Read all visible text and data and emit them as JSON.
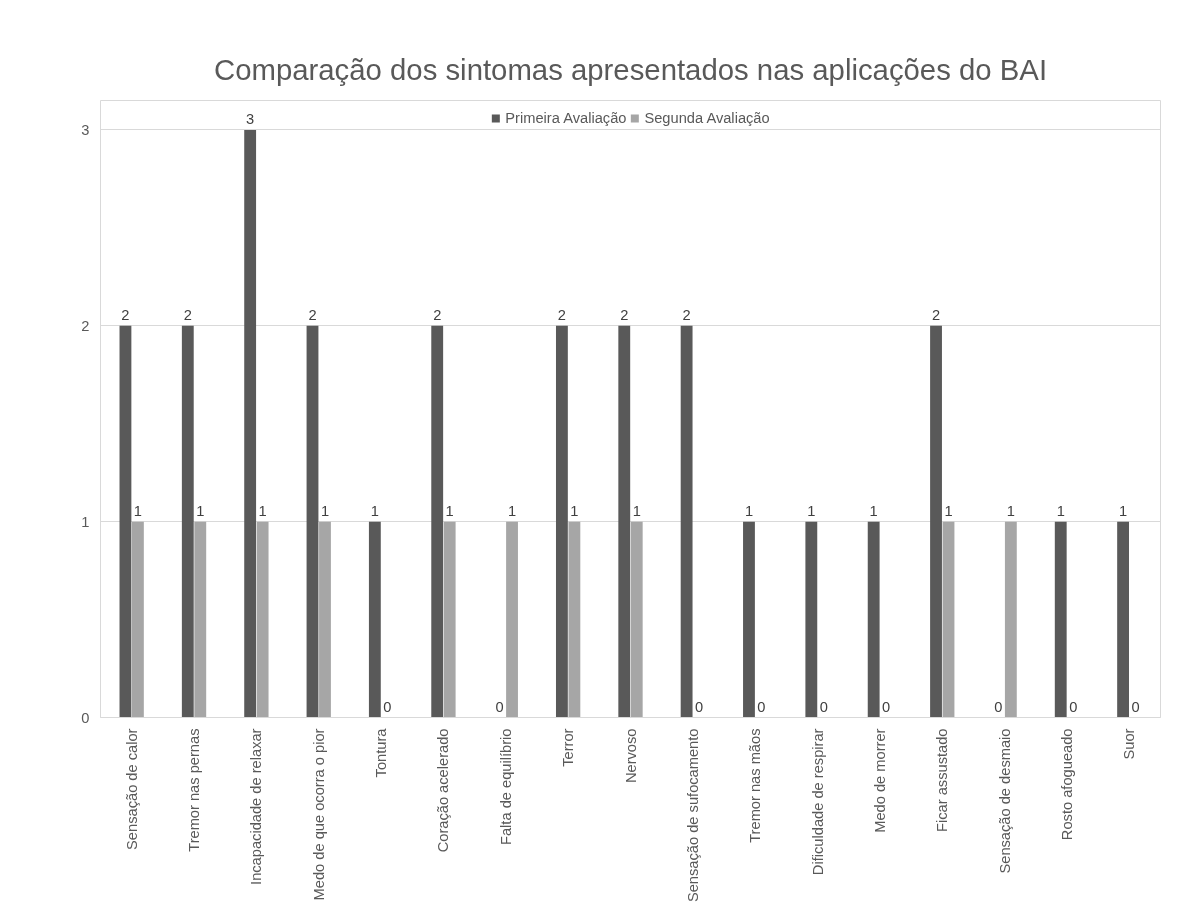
{
  "chart_data": {
    "type": "bar",
    "title": "Comparação dos sintomas apresentados nas aplicações do BAI",
    "categories": [
      "Sensação de calor",
      "Tremor nas pernas",
      "Incapacidade de relaxar",
      "Medo de que ocorra o pior",
      "Tontura",
      "Coração acelerado",
      "Falta de equilíbrio",
      "Terror",
      "Nervoso",
      "Sensação de sufocamento",
      "Tremor nas mãos",
      "Dificuldade de respirar",
      "Medo de morrer",
      "Ficar assustado",
      "Sensação de desmaio",
      "Rosto afogueado",
      "Suor"
    ],
    "series": [
      {
        "name": "Primeira Avaliação",
        "color": "#595959",
        "values": [
          2,
          2,
          3,
          2,
          1,
          2,
          0,
          2,
          2,
          2,
          1,
          1,
          1,
          2,
          0,
          1,
          1
        ]
      },
      {
        "name": "Segunda Avaliação",
        "color": "#a6a6a6",
        "values": [
          1,
          1,
          1,
          1,
          0,
          1,
          1,
          1,
          1,
          0,
          0,
          0,
          0,
          1,
          1,
          0,
          0
        ]
      }
    ],
    "ylim": [
      0,
      3.15
    ],
    "yticks": [
      0,
      1,
      2,
      3
    ],
    "grid": "y",
    "legend": "top",
    "data_labels": true
  }
}
